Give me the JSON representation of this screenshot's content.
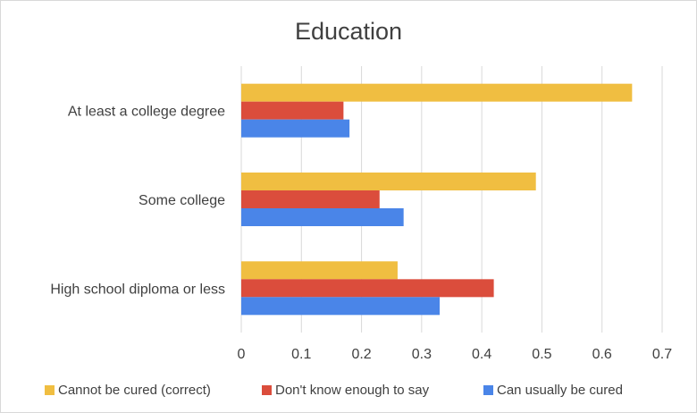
{
  "chart_data": {
    "type": "bar",
    "orientation": "horizontal",
    "title": "Education",
    "categories": [
      "At least a college degree",
      "Some college",
      "High school diploma or less"
    ],
    "series": [
      {
        "name": "Cannot be cured (correct)",
        "color": "#F0BE41",
        "values": [
          0.65,
          0.49,
          0.26
        ]
      },
      {
        "name": "Don't know enough to say",
        "color": "#DB4D3C",
        "values": [
          0.17,
          0.23,
          0.42
        ]
      },
      {
        "name": "Can usually be cured",
        "color": "#4A85E8",
        "values": [
          0.18,
          0.27,
          0.33
        ]
      }
    ],
    "xlim": [
      0,
      0.7
    ],
    "x_ticks": [
      "0",
      "0.1",
      "0.2",
      "0.3",
      "0.4",
      "0.5",
      "0.6",
      "0.7"
    ],
    "grid": "vertical",
    "legend_position": "bottom",
    "gridline_color": "#d9d9d9"
  }
}
